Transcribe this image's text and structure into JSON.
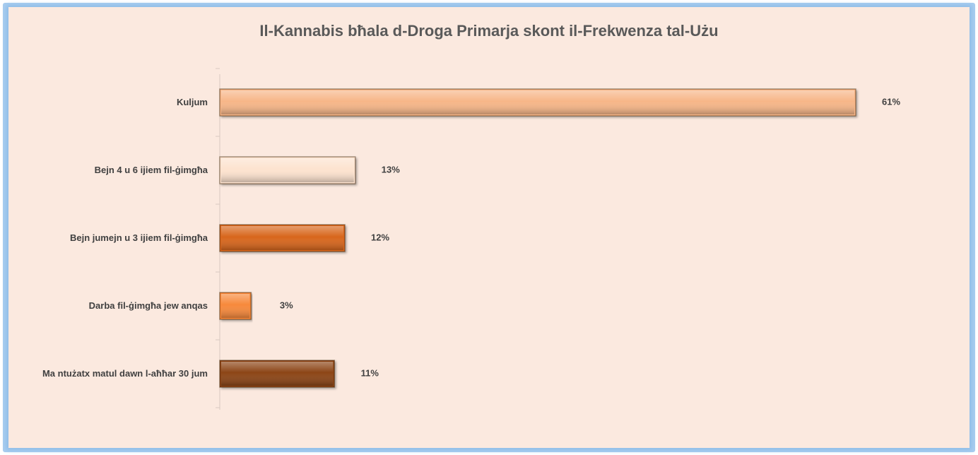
{
  "chart_data": {
    "type": "bar",
    "orientation": "horizontal",
    "title": "Il-Kannabis bħala d-Droga Primarja skont il-Frekwenza tal-Użu",
    "categories": [
      "Kuljum",
      "Bejn 4 u 6 ijiem fil-ġimgħa",
      "Bejn jumejn u 3 ijiem fil-ġimgħa",
      "Darba fil-ġimgħa jew anqas",
      "Ma ntużatx matul dawn l-aħħar 30 jum"
    ],
    "values": [
      61,
      13,
      12,
      3,
      11
    ],
    "value_labels": [
      "61%",
      "13%",
      "12%",
      "3%",
      "11%"
    ],
    "colors": [
      "#f7b688",
      "#fde3cf",
      "#d8661e",
      "#f7893a",
      "#8c4417"
    ]
  }
}
